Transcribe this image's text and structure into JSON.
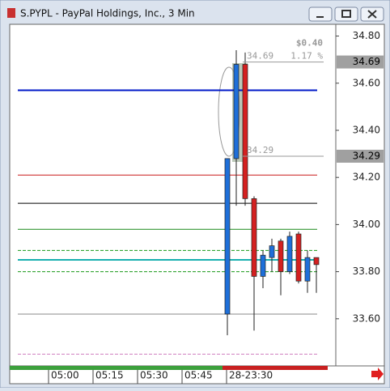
{
  "window_title": "S.PYPL - PayPal Holdings, Inc., 3 Min",
  "chart_data": {
    "type": "candlestick",
    "categories": [
      "05:00",
      null,
      null,
      null,
      null,
      "05:15",
      null,
      null,
      null,
      null,
      "05:30",
      null,
      null,
      null,
      null,
      "05:45",
      null,
      null,
      null,
      null,
      "28-23:30",
      null,
      null,
      null,
      null,
      null,
      null,
      null,
      null,
      null,
      null
    ],
    "open": [
      null,
      null,
      null,
      null,
      null,
      null,
      null,
      null,
      null,
      null,
      null,
      null,
      null,
      null,
      null,
      null,
      null,
      null,
      null,
      null,
      33.62,
      34.28,
      34.68,
      34.11,
      33.78,
      33.86,
      33.93,
      33.8,
      33.96,
      33.76,
      33.86
    ],
    "high": [
      null,
      null,
      null,
      null,
      null,
      null,
      null,
      null,
      null,
      null,
      null,
      null,
      null,
      null,
      null,
      null,
      null,
      null,
      null,
      null,
      34.28,
      34.74,
      34.73,
      34.12,
      33.89,
      33.94,
      33.94,
      33.97,
      33.97,
      33.89,
      33.86
    ],
    "low": [
      null,
      null,
      null,
      null,
      null,
      null,
      null,
      null,
      null,
      null,
      null,
      null,
      null,
      null,
      null,
      null,
      null,
      null,
      null,
      null,
      33.53,
      34.08,
      34.08,
      33.55,
      33.73,
      33.8,
      33.7,
      33.79,
      33.75,
      33.71,
      33.71
    ],
    "close": [
      null,
      null,
      null,
      null,
      null,
      null,
      null,
      null,
      null,
      null,
      null,
      null,
      null,
      null,
      null,
      null,
      null,
      null,
      null,
      null,
      34.28,
      34.68,
      34.11,
      33.78,
      33.87,
      33.91,
      33.8,
      33.95,
      33.76,
      33.86,
      33.83
    ],
    "up_color": "#1e6fd9",
    "down_color": "#d42020",
    "levels": [
      {
        "value": 34.57,
        "color": "#0018c8",
        "dashed": false
      },
      {
        "value": 34.21,
        "color": "#c81818",
        "dashed": false
      },
      {
        "value": 34.09,
        "color": "#000000",
        "dashed": false
      },
      {
        "value": 33.98,
        "color": "#1a8a1a",
        "dashed": false
      },
      {
        "value": 33.89,
        "color": "#1a9a1a",
        "dashed": true
      },
      {
        "value": 33.85,
        "color": "#18b0b0",
        "dashed": false
      },
      {
        "value": 33.8,
        "color": "#1a9a1a",
        "dashed": true
      },
      {
        "value": 33.62,
        "color": "#888888",
        "dashed": false
      },
      {
        "value": 33.45,
        "color": "#d080c0",
        "dashed": true
      }
    ],
    "ylim": [
      33.4,
      34.85
    ],
    "yticks": [
      {
        "value": 33.6,
        "label": "33.60"
      },
      {
        "value": 33.8,
        "label": "33.80"
      },
      {
        "value": 34.0,
        "label": "34.00"
      },
      {
        "value": 34.2,
        "label": "34.20"
      },
      {
        "value": 34.4,
        "label": "34.40"
      },
      {
        "value": 34.6,
        "label": "34.60"
      },
      {
        "value": 34.8,
        "label": "34.80"
      }
    ],
    "measure": {
      "high": 34.69,
      "low": 34.29,
      "change": {
        "value": 0.4,
        "label": "$0.40"
      },
      "percent": {
        "value": 1.17,
        "label": "1.17 %"
      }
    }
  }
}
